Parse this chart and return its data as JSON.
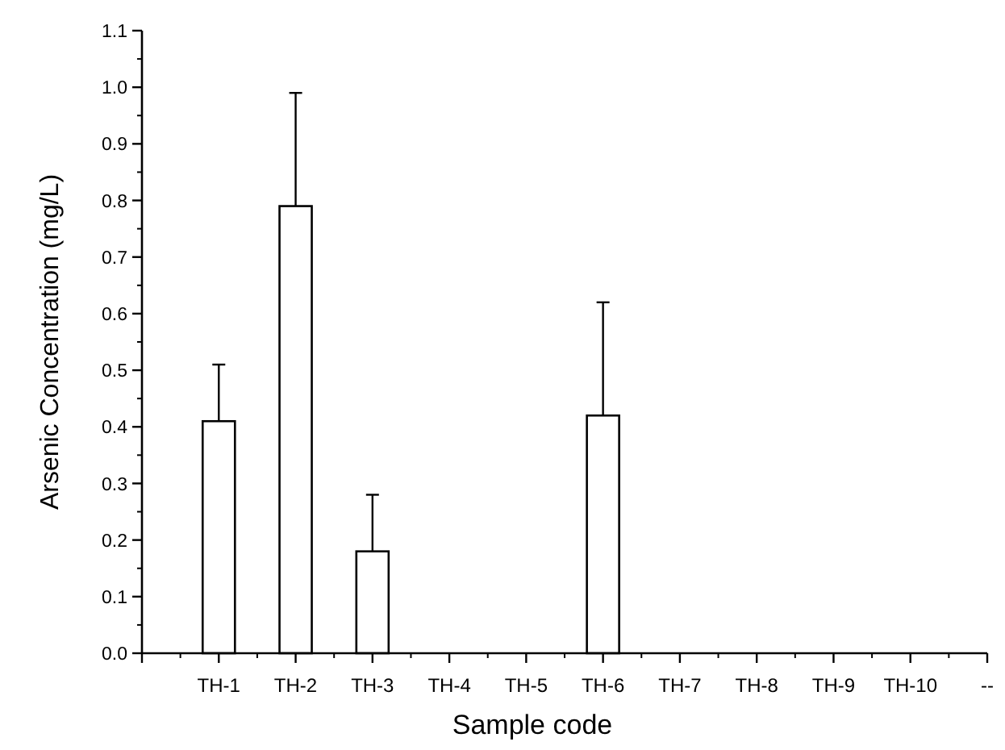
{
  "chart_data": {
    "type": "bar",
    "xlabel": "Sample code",
    "ylabel": "Arsenic Concentration (mg/L)",
    "categories": [
      null,
      "TH-1",
      "TH-2",
      "TH-3",
      "TH-4",
      "TH-5",
      "TH-6",
      "TH-7",
      "TH-8",
      "TH-9",
      "TH-10",
      "--"
    ],
    "values": [
      null,
      0.41,
      0.79,
      0.18,
      null,
      null,
      0.42,
      null,
      null,
      null,
      null,
      null
    ],
    "errors": [
      null,
      [
        0.41,
        0.51
      ],
      [
        0.79,
        0.99
      ],
      [
        0.18,
        0.28
      ],
      null,
      null,
      [
        0.42,
        0.62
      ],
      null,
      null,
      null,
      null,
      null
    ],
    "color": "#ffffff",
    "ylim": [
      0,
      1.1
    ],
    "yticks": [
      {
        "value": 0,
        "label": "0.0"
      },
      {
        "value": 0.1,
        "label": "0.1"
      },
      {
        "value": 0.2,
        "label": "0.2"
      },
      {
        "value": 0.3,
        "label": "0.3"
      },
      {
        "value": 0.4,
        "label": "0.4"
      },
      {
        "value": 0.5,
        "label": "0.5"
      },
      {
        "value": 0.6,
        "label": "0.6"
      },
      {
        "value": 0.7,
        "label": "0.7"
      },
      {
        "value": 0.8,
        "label": "0.8"
      },
      {
        "value": 0.9,
        "label": "0.9"
      },
      {
        "value": 1,
        "label": "1.0"
      },
      {
        "value": 1.1,
        "label": "1.1"
      }
    ]
  }
}
